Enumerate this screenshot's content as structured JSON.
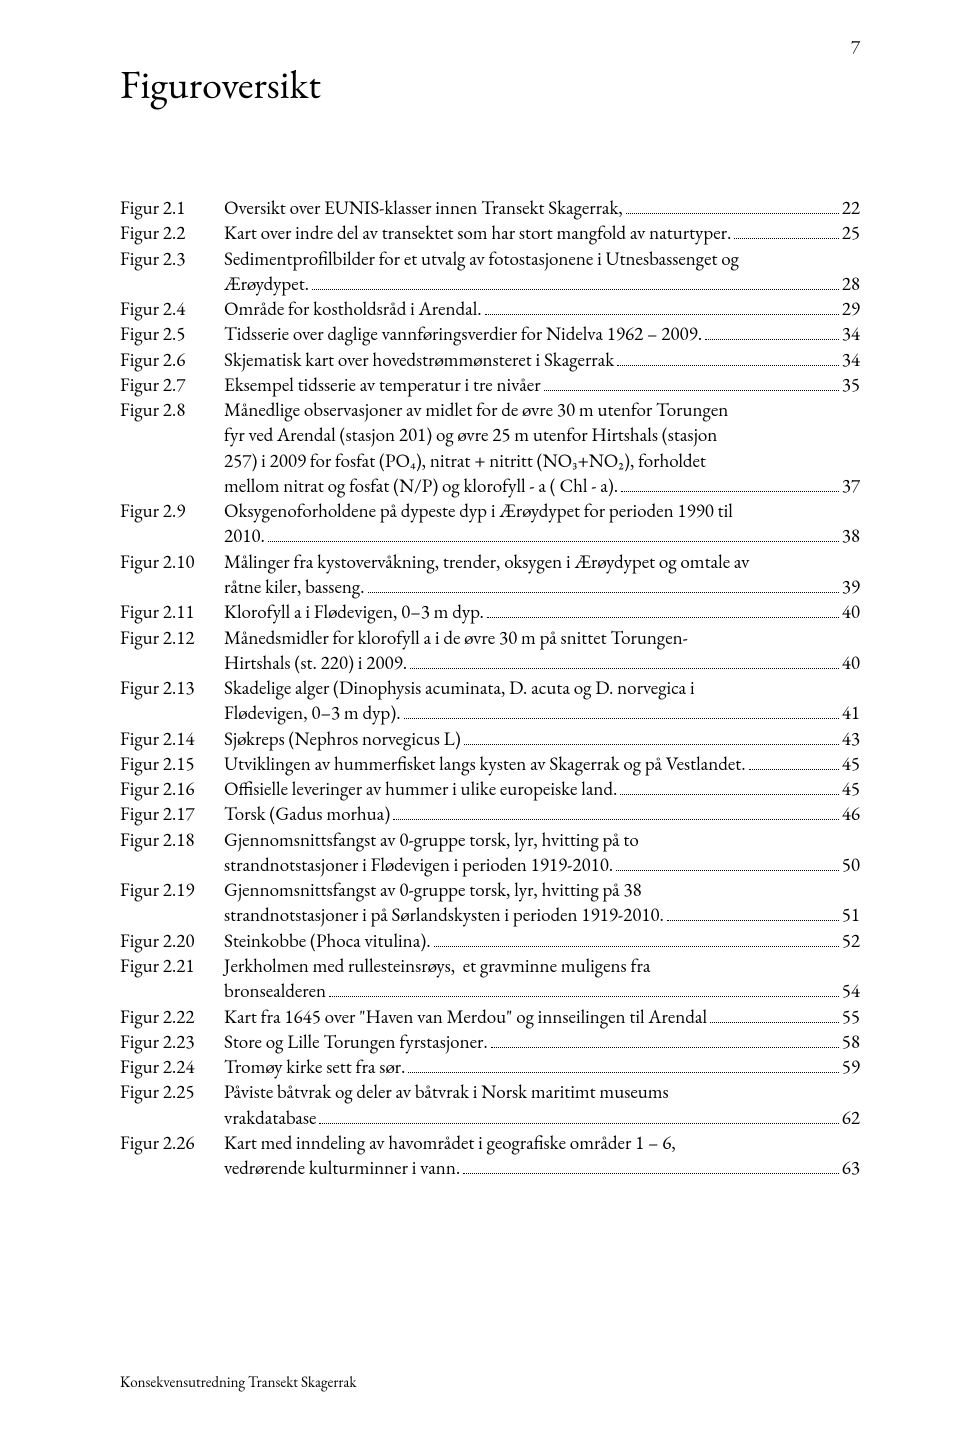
{
  "page_number": "7",
  "title": "Figuroversikt",
  "footer": "Konsekvensutredning Transekt Skagerrak",
  "entries": [
    {
      "label": "Figur 2.1",
      "lines": [
        "Oversikt over EUNIS-klasser innen Transekt Skagerrak,"
      ],
      "page": "22"
    },
    {
      "label": "Figur 2.2",
      "lines": [
        "Kart over indre del av transektet som har stort mangfold av naturtyper."
      ],
      "page": "25"
    },
    {
      "label": "Figur 2.3",
      "lines": [
        "Sedimentprofilbilder for et utvalg av fotostasjonene i Utnesbassenget og",
        "Ærøydypet."
      ],
      "page": "28"
    },
    {
      "label": "Figur 2.4",
      "lines": [
        "Område for kostholdsråd i Arendal."
      ],
      "page": "29"
    },
    {
      "label": "Figur 2.5",
      "lines": [
        "Tidsserie over daglige vannføringsverdier for Nidelva 1962 – 2009."
      ],
      "page": "34"
    },
    {
      "label": "Figur 2.6",
      "lines": [
        "Skjematisk kart over hovedstrømmønsteret i Skagerrak"
      ],
      "page": "34"
    },
    {
      "label": "Figur 2.7",
      "lines": [
        "Eksempel tidsserie av temperatur i tre nivåer"
      ],
      "page": "35"
    },
    {
      "label": "Figur 2.8",
      "lines": [
        "Månedlige observasjoner av midlet for de øvre 30 m utenfor Torungen",
        "fyr ved Arendal (stasjon 201) og øvre 25 m utenfor Hirtshals (stasjon",
        "257) i 2009 for fosfat (PO₄), nitrat + nitritt (NO₃+NO₂), forholdet",
        "mellom nitrat og fosfat (N/P) og klorofyll - a ( Chl - a)."
      ],
      "page": "37"
    },
    {
      "label": "Figur 2.9",
      "lines": [
        "Oksygenoforholdene på dypeste dyp i Ærøydypet for perioden 1990 til",
        "2010."
      ],
      "page": "38"
    },
    {
      "label": "Figur 2.10",
      "lines": [
        "Målinger fra kystovervåkning, trender, oksygen i Ærøydypet og omtale av",
        "råtne kiler, basseng."
      ],
      "page": "39"
    },
    {
      "label": "Figur 2.11",
      "lines": [
        "Klorofyll a i Flødevigen, 0–3 m dyp."
      ],
      "page": "40"
    },
    {
      "label": "Figur 2.12",
      "lines": [
        "Månedsmidler for klorofyll a i de øvre 30 m på snittet Torungen-",
        "Hirtshals (st. 220) i 2009."
      ],
      "page": "40"
    },
    {
      "label": "Figur 2.13",
      "lines": [
        "Skadelige alger (Dinophysis acuminata, D. acuta og D. norvegica i",
        "Flødevigen, 0–3 m dyp)."
      ],
      "page": "41"
    },
    {
      "label": "Figur 2.14",
      "lines": [
        "Sjøkreps (Nephros norvegicus L)"
      ],
      "page": "43"
    },
    {
      "label": "Figur 2.15",
      "lines": [
        "Utviklingen av hummerfisket langs kysten av Skagerrak og på Vestlandet."
      ],
      "page": "45"
    },
    {
      "label": "Figur 2.16",
      "lines": [
        "Offisielle leveringer av hummer i ulike europeiske land."
      ],
      "page": "45"
    },
    {
      "label": "Figur 2.17",
      "lines": [
        "Torsk (Gadus morhua)"
      ],
      "page": "46"
    },
    {
      "label": "Figur 2.18",
      "lines": [
        "Gjennomsnittsfangst av 0-gruppe torsk, lyr, hvitting på to",
        "strandnotstasjoner i Flødevigen i perioden 1919-2010."
      ],
      "page": "50"
    },
    {
      "label": "Figur 2.19",
      "lines": [
        "Gjennomsnittsfangst av 0-gruppe torsk, lyr, hvitting på 38",
        "strandnotstasjoner i på Sørlandskysten i perioden 1919-2010."
      ],
      "page": "51"
    },
    {
      "label": "Figur 2.20",
      "lines": [
        "Steinkobbe (Phoca vitulina)."
      ],
      "page": "52"
    },
    {
      "label": "Figur 2.21",
      "lines": [
        "Jerkholmen med rullesteinsrøys,  et gravminne muligens fra",
        "bronsealderen"
      ],
      "page": "54"
    },
    {
      "label": "Figur 2.22",
      "lines": [
        "Kart fra 1645 over \"Haven van Merdou\" og innseilingen til Arendal"
      ],
      "page": "55"
    },
    {
      "label": "Figur 2.23",
      "lines": [
        "Store og Lille Torungen fyrstasjoner."
      ],
      "page": "58"
    },
    {
      "label": "Figur 2.24",
      "lines": [
        "Tromøy kirke sett fra sør."
      ],
      "page": "59"
    },
    {
      "label": "Figur 2.25",
      "lines": [
        "Påviste båtvrak og deler av båtvrak i Norsk maritimt museums",
        "vrakdatabase"
      ],
      "page": "62"
    },
    {
      "label": "Figur 2.26",
      "lines": [
        "Kart med inndeling av havområdet i geografiske områder 1 – 6,",
        "vedrørende kulturminner i vann."
      ],
      "page": "63"
    }
  ]
}
